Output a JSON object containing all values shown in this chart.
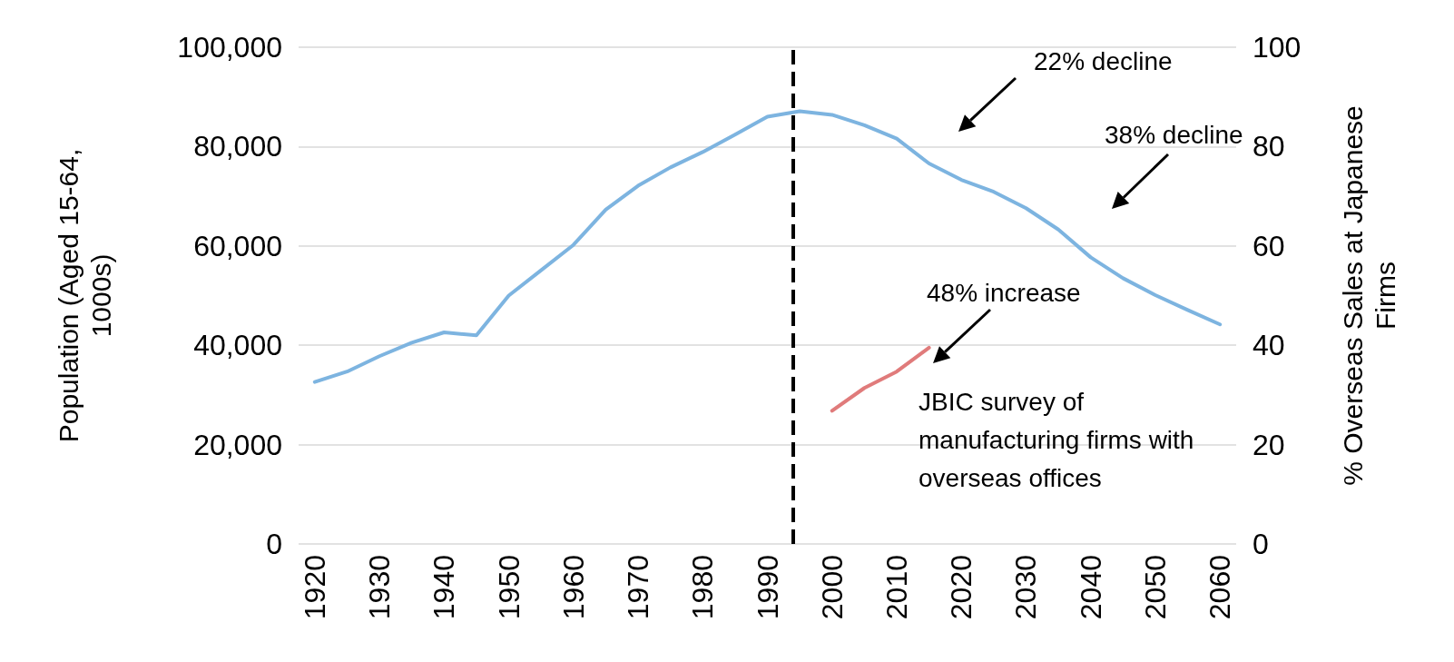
{
  "chart_data": {
    "type": "line",
    "ylabel": "Population (Aged 15-64, 1000s)",
    "y2label": "% Overseas Sales at Japanese Firms",
    "xlim": [
      1917.5,
      2062.5
    ],
    "xticks": [
      1920,
      1930,
      1940,
      1950,
      1960,
      1970,
      1980,
      1990,
      2000,
      2010,
      2020,
      2030,
      2040,
      2050,
      2060
    ],
    "ylim": [
      0,
      100000
    ],
    "yticks": [
      0,
      {
        "value": 20000,
        "label": "20,000"
      },
      {
        "value": 40000,
        "label": "40,000"
      },
      {
        "value": 60000,
        "label": "60,000"
      },
      {
        "value": 80000,
        "label": "80,000"
      },
      {
        "value": 100000,
        "label": "100,000"
      }
    ],
    "y2lim": [
      0,
      100
    ],
    "y2ticks": [
      0,
      20,
      40,
      60,
      80,
      100
    ],
    "grid": "y",
    "marker": "none",
    "line_style": "solid",
    "series": [
      {
        "color": "#7db4e0",
        "x": [
          1920,
          1925,
          1930,
          1935,
          1940,
          1945,
          1950,
          1955,
          1960,
          1965,
          1970,
          1975,
          1980,
          1985,
          1990,
          1995,
          2000,
          2005,
          2010,
          2015,
          2020,
          2025,
          2030,
          2035,
          2040,
          2045,
          2050,
          2055,
          2060
        ],
        "values": [
          32600,
          34700,
          37800,
          40500,
          42600,
          42000,
          50000,
          55100,
          60200,
          67300,
          72100,
          75800,
          78900,
          82400,
          86000,
          87100,
          86400,
          84300,
          81600,
          76600,
          73300,
          70900,
          67600,
          63300,
          57700,
          53500,
          50100,
          47100,
          44200
        ]
      },
      {
        "color": "#e07b7b",
        "axis": "y2",
        "x": [
          2000,
          2005,
          2010,
          2015
        ],
        "values": [
          26.8,
          31.4,
          34.7,
          39.5
        ]
      }
    ],
    "ref_lines": [
      {
        "axis": "x",
        "value": 1994,
        "color": "#000000",
        "line_style": "dashed"
      }
    ],
    "annotations": [
      "22% decline",
      "38% decline",
      "48% increase",
      "JBIC survey of manufacturing firms with overseas offices"
    ]
  }
}
